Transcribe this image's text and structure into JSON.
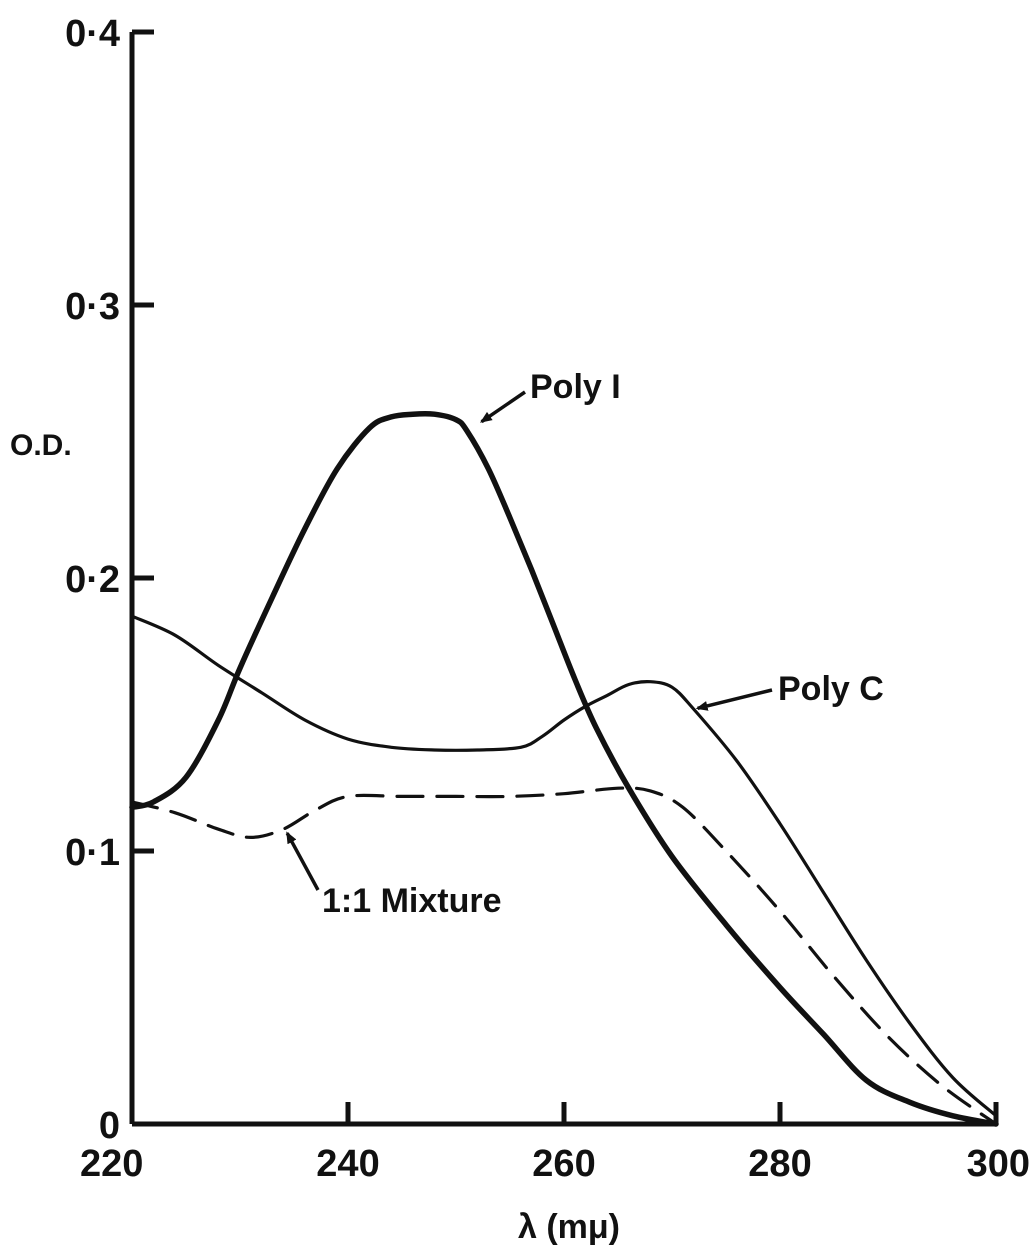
{
  "chart_data": {
    "type": "line",
    "title": "",
    "xlabel": "λ (mμ)",
    "ylabel": "O.D.",
    "xlim": [
      220,
      300
    ],
    "ylim": [
      0,
      0.4
    ],
    "x_ticks": [
      220,
      240,
      260,
      280,
      300
    ],
    "x_tick_labels": [
      "220",
      "240",
      "260",
      "280",
      "300"
    ],
    "y_ticks": [
      0,
      0.1,
      0.2,
      0.3,
      0.4
    ],
    "y_tick_labels": [
      "0",
      "0·1",
      "0·2",
      "0·3",
      "0·4"
    ],
    "grid": false,
    "legend": "none",
    "series": [
      {
        "name": "Poly I",
        "style": "solid-thick",
        "color": "#111111",
        "x": [
          220,
          222,
          225,
          228,
          230,
          233,
          236,
          239,
          242,
          244,
          246,
          248,
          250,
          251,
          253,
          255,
          257,
          259,
          261,
          263,
          266,
          270,
          275,
          280,
          284,
          288,
          292,
          296,
          300
        ],
        "y": [
          0.116,
          0.118,
          0.127,
          0.148,
          0.167,
          0.193,
          0.218,
          0.24,
          0.255,
          0.259,
          0.26,
          0.26,
          0.258,
          0.254,
          0.24,
          0.222,
          0.203,
          0.183,
          0.163,
          0.145,
          0.123,
          0.098,
          0.073,
          0.05,
          0.033,
          0.016,
          0.008,
          0.003,
          0
        ]
      },
      {
        "name": "Poly C",
        "style": "solid",
        "color": "#111111",
        "x": [
          220,
          224,
          228,
          232,
          236,
          240,
          244,
          248,
          252,
          256,
          258,
          260,
          262,
          264,
          266,
          268,
          270,
          272,
          276,
          280,
          284,
          288,
          292,
          296,
          300
        ],
        "y": [
          0.186,
          0.179,
          0.168,
          0.158,
          0.148,
          0.141,
          0.138,
          0.137,
          0.137,
          0.138,
          0.142,
          0.148,
          0.153,
          0.157,
          0.161,
          0.162,
          0.16,
          0.152,
          0.133,
          0.11,
          0.085,
          0.06,
          0.037,
          0.017,
          0.003
        ]
      },
      {
        "name": "1:1 Mixture",
        "style": "dashed",
        "color": "#111111",
        "x": [
          220,
          224,
          228,
          231,
          234,
          237,
          240,
          245,
          250,
          255,
          260,
          265,
          268,
          271,
          275,
          280,
          285,
          290,
          295,
          300
        ],
        "y": [
          0.118,
          0.114,
          0.108,
          0.105,
          0.108,
          0.115,
          0.12,
          0.12,
          0.12,
          0.12,
          0.121,
          0.123,
          0.122,
          0.116,
          0.1,
          0.078,
          0.054,
          0.032,
          0.014,
          0
        ]
      }
    ],
    "annotations": [
      {
        "text": "Poly I",
        "series": "Poly I",
        "at_x": 252,
        "at_y": 0.258
      },
      {
        "text": "Poly C",
        "series": "Poly C",
        "at_x": 272,
        "at_y": 0.153
      },
      {
        "text": "1:1 Mixture",
        "series": "1:1 Mixture",
        "at_x": 234,
        "at_y": 0.108
      }
    ]
  }
}
